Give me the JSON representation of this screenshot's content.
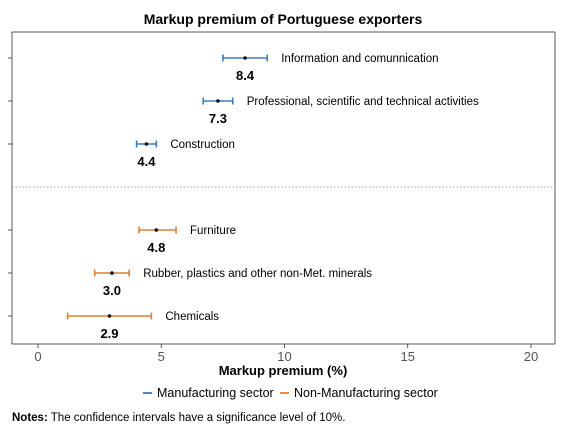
{
  "chart_data": {
    "type": "scatter",
    "title": "Markup premium of Portuguese exporters",
    "xlabel": "Markup premium (%)",
    "ylabel": "",
    "xlim": [
      -1,
      20.5
    ],
    "xticks": [
      0,
      5,
      10,
      15,
      20
    ],
    "grid": false,
    "legend_position": "bottom",
    "series": [
      {
        "name": "Manufacturing sector",
        "color": "#3a7ebf",
        "points": [
          {
            "label": "Information and comunnication",
            "value": 8.4,
            "ci": [
              7.5,
              9.3
            ],
            "value_label": "8.4"
          },
          {
            "label": "Professional, scientific and technical activities",
            "value": 7.3,
            "ci": [
              6.7,
              7.9
            ],
            "value_label": "7.3"
          },
          {
            "label": "Construction",
            "value": 4.4,
            "ci": [
              4.0,
              4.8
            ],
            "value_label": "4.4"
          }
        ]
      },
      {
        "name": "Non-Manufacturing sector",
        "color": "#e0812f",
        "points": [
          {
            "label": "Furniture",
            "value": 4.8,
            "ci": [
              4.1,
              5.6
            ],
            "value_label": "4.8"
          },
          {
            "label": "Rubber, plastics and other non-Met. minerals",
            "value": 3.0,
            "ci": [
              2.3,
              3.7
            ],
            "value_label": "3.0"
          },
          {
            "label": "Chemicals",
            "value": 2.9,
            "ci": [
              1.2,
              4.6
            ],
            "value_label": "2.9"
          }
        ]
      }
    ]
  },
  "notes": {
    "label": "Notes:",
    "text": " The confidence intervals have a significance level of 10%."
  }
}
